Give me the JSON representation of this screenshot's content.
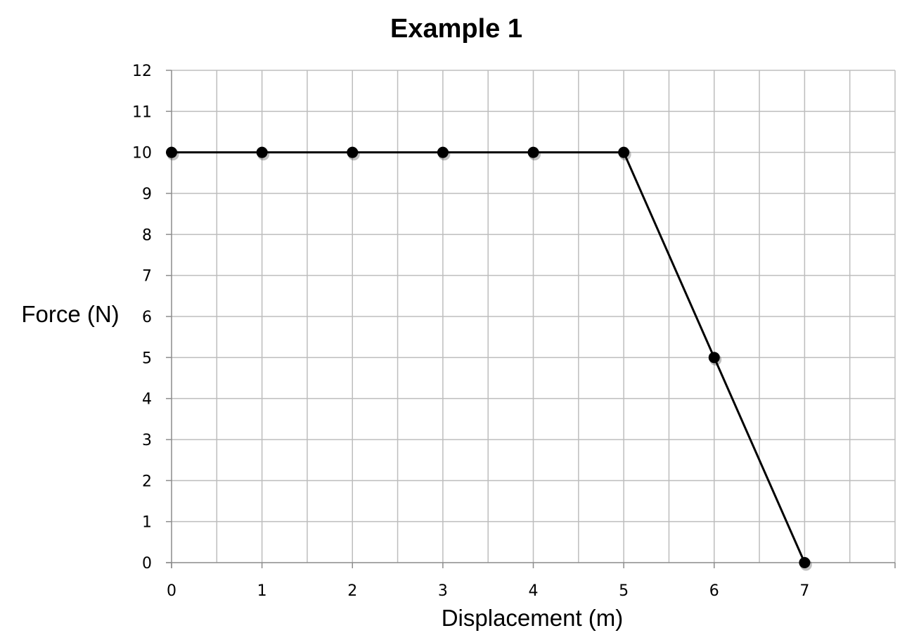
{
  "chart_data": {
    "type": "line",
    "title": "Example 1",
    "xlabel": "Displacement (m)",
    "ylabel": "Force (N)",
    "xlim": [
      0,
      8
    ],
    "ylim": [
      0,
      12
    ],
    "x_ticks": [
      0,
      1,
      2,
      3,
      4,
      5,
      6,
      7
    ],
    "y_ticks": [
      0,
      1,
      2,
      3,
      4,
      5,
      6,
      7,
      8,
      9,
      10,
      11,
      12
    ],
    "grid": true,
    "legend": "none",
    "series": [
      {
        "x": [
          0,
          1,
          2,
          3,
          4,
          5,
          6,
          7
        ],
        "y": [
          10,
          10,
          10,
          10,
          10,
          10,
          5,
          0
        ],
        "color": "#000000",
        "marker": "circle"
      }
    ]
  }
}
